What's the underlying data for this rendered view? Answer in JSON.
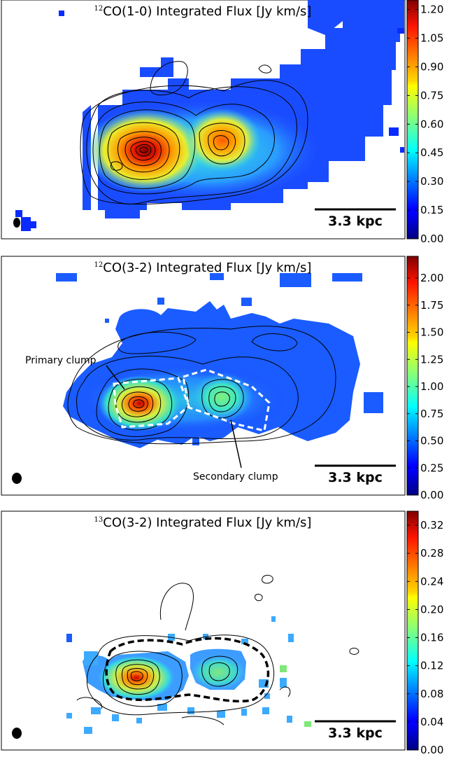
{
  "chart_data": [
    {
      "type": "heatmap",
      "title_sup": "12",
      "title": "CO(1-0) Integrated Flux [Jy km/s]",
      "colorbar": {
        "ticks": [
          "0.00",
          "0.15",
          "0.30",
          "0.45",
          "0.60",
          "0.75",
          "0.90",
          "1.05",
          "1.20"
        ],
        "range": [
          0,
          1.25
        ]
      },
      "scale_bar": "3.3 kpc",
      "annotations": []
    },
    {
      "type": "heatmap",
      "title_sup": "12",
      "title": "CO(3-2) Integrated Flux [Jy km/s]",
      "colorbar": {
        "ticks": [
          "0.00",
          "0.25",
          "0.50",
          "0.75",
          "1.00",
          "1.25",
          "1.50",
          "1.75",
          "2.00"
        ],
        "range": [
          0,
          2.2
        ]
      },
      "scale_bar": "3.3 kpc",
      "annotations": [
        "Primary clump",
        "Secondary clump"
      ]
    },
    {
      "type": "heatmap",
      "title_sup": "13",
      "title": "CO(3-2) Integrated Flux [Jy km/s]",
      "colorbar": {
        "ticks": [
          "0.00",
          "0.04",
          "0.08",
          "0.12",
          "0.16",
          "0.20",
          "0.24",
          "0.28",
          "0.32"
        ],
        "range": [
          0,
          0.34
        ]
      },
      "scale_bar": "3.3 kpc",
      "annotations": []
    }
  ],
  "colors": {
    "jet_low": "#00007f",
    "jet_mid": "#7fff7f",
    "jet_high": "#7f0000"
  }
}
